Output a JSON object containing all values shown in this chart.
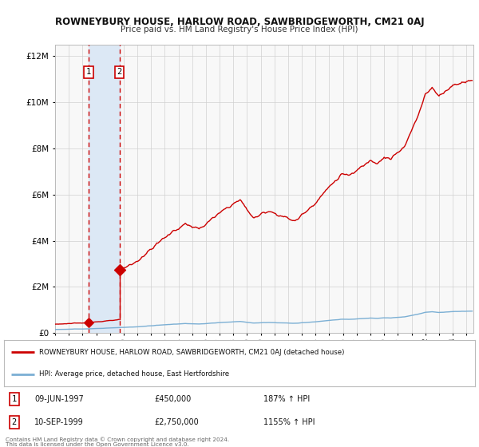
{
  "title": "ROWNEYBURY HOUSE, HARLOW ROAD, SAWBRIDGEWORTH, CM21 0AJ",
  "subtitle": "Price paid vs. HM Land Registry's House Price Index (HPI)",
  "hpi_label": "HPI: Average price, detached house, East Hertfordshire",
  "property_label": "ROWNEYBURY HOUSE, HARLOW ROAD, SAWBRIDGEWORTH, CM21 0AJ (detached house)",
  "footnote1": "Contains HM Land Registry data © Crown copyright and database right 2024.",
  "footnote2": "This data is licensed under the Open Government Licence v3.0.",
  "sale1_date": "09-JUN-1997",
  "sale1_price": 450000,
  "sale1_label": "£450,000",
  "sale1_hpi": "187% ↑ HPI",
  "sale2_date": "10-SEP-1999",
  "sale2_price": 2750000,
  "sale2_label": "£2,750,000",
  "sale2_hpi": "1155% ↑ HPI",
  "sale1_year": 1997.44,
  "sale2_year": 1999.7,
  "ylim_max": 12500000,
  "xlim_min": 1995.0,
  "xlim_max": 2025.5,
  "hpi_color": "#7bafd4",
  "property_color": "#cc0000",
  "background_color": "#ffffff",
  "plot_bg_color": "#f8f8f8",
  "shade_color": "#dce8f5",
  "grid_color": "#d0d0d0"
}
